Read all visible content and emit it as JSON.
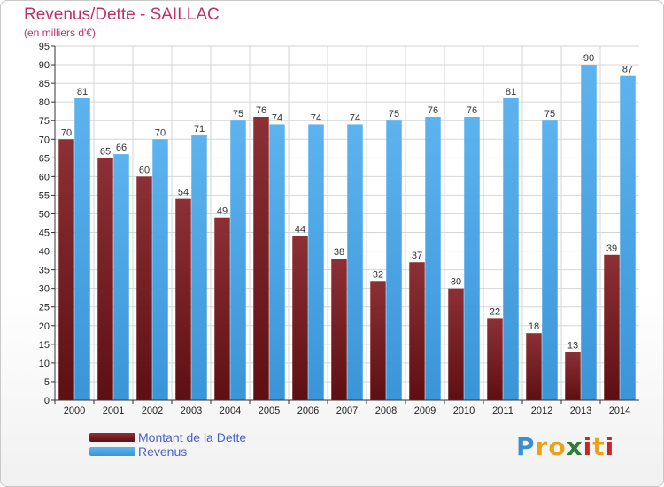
{
  "chart_data": {
    "type": "bar",
    "title": "Revenus/Dette - SAILLAC",
    "subtitle": "(en milliers d'€)",
    "categories": [
      "2000",
      "2001",
      "2002",
      "2003",
      "2004",
      "2005",
      "2006",
      "2007",
      "2008",
      "2009",
      "2010",
      "2011",
      "2012",
      "2013",
      "2014"
    ],
    "series": [
      {
        "name": "Montant de la Dette",
        "color": "#7a1e22",
        "values": [
          70,
          65,
          60,
          54,
          49,
          76,
          44,
          38,
          32,
          37,
          30,
          22,
          18,
          13,
          39
        ]
      },
      {
        "name": "Revenus",
        "color": "#4aa6e6",
        "values": [
          81,
          66,
          70,
          71,
          75,
          74,
          74,
          74,
          75,
          76,
          76,
          81,
          75,
          90,
          87
        ]
      }
    ],
    "ylim": [
      0,
      95
    ],
    "ytick_step": 5,
    "grid": true,
    "legend_position": "bottom-left"
  },
  "brand": {
    "letters": [
      "P",
      "r",
      "o",
      "x",
      "i",
      "t",
      "i"
    ],
    "colors": [
      "#3b8ed0",
      "#e8a317",
      "#e8a317",
      "#2e7d32",
      "#c62828",
      "#e8a317",
      "#c62828"
    ]
  }
}
